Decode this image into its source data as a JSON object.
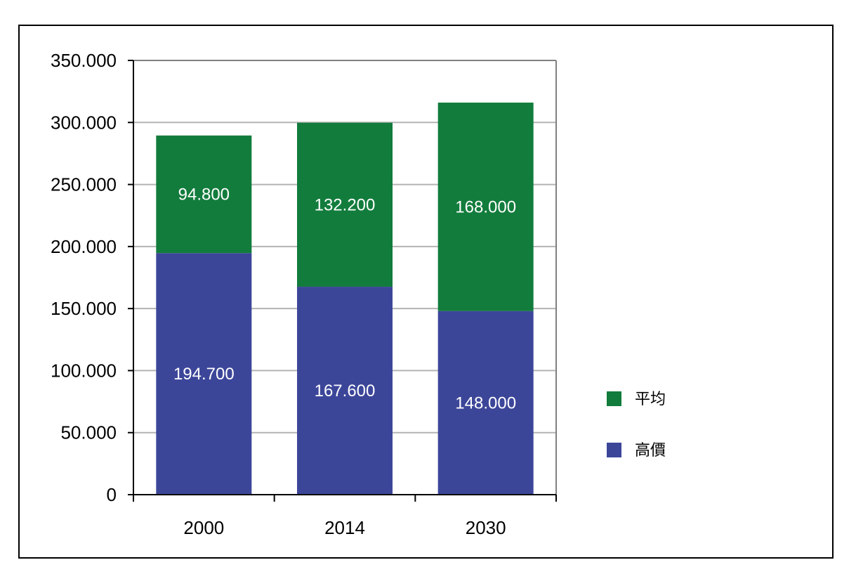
{
  "chart_data": {
    "type": "bar",
    "stacked": true,
    "categories": [
      "2000",
      "2014",
      "2030"
    ],
    "series": [
      {
        "name": "高價",
        "values": [
          194700,
          167600,
          148000
        ],
        "labels": [
          "194.700",
          "167.600",
          "148.000"
        ],
        "color": "#3c4699"
      },
      {
        "name": "平均",
        "values": [
          94800,
          132200,
          168000
        ],
        "labels": [
          "94.800",
          "132.200",
          "168.000"
        ],
        "color": "#127c3c"
      }
    ],
    "ylim": [
      0,
      350000
    ],
    "yticks": [
      0,
      50000,
      100000,
      150000,
      200000,
      250000,
      300000,
      350000
    ],
    "ytick_labels": [
      "0",
      "50.000",
      "100.000",
      "150.000",
      "200.000",
      "250.000",
      "300.000",
      "350.000"
    ],
    "grid": true,
    "legend_position": "right",
    "legend_order": [
      "平均",
      "高價"
    ],
    "title": "",
    "xlabel": "",
    "ylabel": ""
  }
}
